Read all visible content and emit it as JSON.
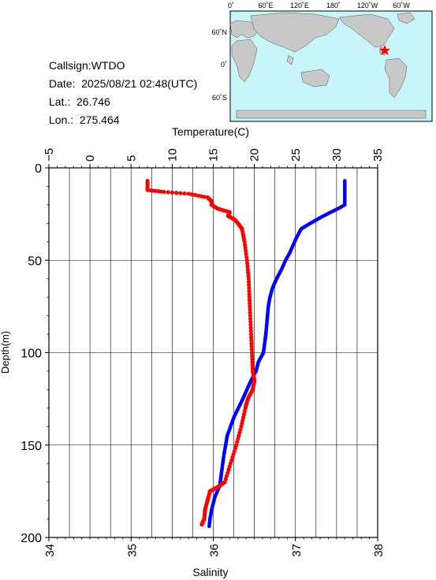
{
  "header": {
    "callsign": "Callsign:WTDO",
    "date": "Date:  2025/08/21 02:48(UTC)",
    "lat": "Lat.:  26.746",
    "lon": "Lon.:  275.464"
  },
  "map": {
    "top_labels": [
      "0˚",
      "60˚E",
      "120˚E",
      "180˚",
      "120˚W",
      "60˚W"
    ],
    "lat_labels": [
      "60˚N",
      "0˚",
      "60˚S"
    ],
    "station_marker": "red-star",
    "colors": {
      "ocean": "#c8f5fa",
      "land": "#c8c8c8",
      "marker": "#ff0000"
    }
  },
  "chart_data": {
    "type": "line",
    "title": "",
    "top_axis_label": "Temperature(C)",
    "bottom_axis_label": "Salinity",
    "y_axis_label": "Depth(m)",
    "temperature_range": [
      -5,
      35
    ],
    "salinity_range": [
      34,
      38
    ],
    "depth_range": [
      0,
      200
    ],
    "temperature_ticks": [
      "−5",
      "0",
      "5",
      "10",
      "15",
      "20",
      "25",
      "30",
      "35"
    ],
    "salinity_ticks": [
      "34",
      "35",
      "36",
      "37",
      "38"
    ],
    "depth_ticks": [
      "0",
      "50",
      "100",
      "150",
      "200"
    ],
    "grid": true,
    "series": [
      {
        "color": "#0000ff",
        "axis": "temperature",
        "depth": [
          7,
          20,
          22,
          24,
          27,
          30,
          33,
          38,
          42,
          46,
          50,
          55,
          60,
          65,
          70,
          75,
          80,
          90,
          100,
          105,
          110,
          115,
          125,
          135,
          145,
          155,
          165,
          172,
          178,
          185,
          190,
          194
        ],
        "temperature": [
          31.0,
          31.0,
          30.2,
          29.3,
          28.0,
          26.8,
          25.7,
          25.1,
          24.7,
          24.3,
          23.8,
          23.3,
          22.7,
          22.2,
          21.9,
          21.7,
          21.6,
          21.4,
          21.1,
          20.5,
          20.2,
          19.6,
          18.6,
          17.5,
          16.7,
          16.3,
          16.0,
          15.8,
          15.2,
          14.8,
          14.6,
          14.5
        ]
      },
      {
        "color": "#ff0000",
        "axis": "temperature",
        "depth": [
          7,
          12,
          13,
          14,
          16,
          18,
          20,
          22,
          24,
          26,
          28,
          30,
          33,
          40,
          50,
          60,
          70,
          80,
          90,
          100,
          110,
          115,
          120,
          125,
          130,
          140,
          150,
          160,
          170,
          172,
          175,
          180,
          185,
          190,
          193
        ],
        "temperature": [
          7.0,
          7.0,
          9.0,
          12.0,
          14.3,
          14.8,
          14.8,
          15.5,
          17.0,
          16.8,
          17.6,
          18.0,
          18.5,
          18.8,
          19.1,
          19.3,
          19.4,
          19.5,
          19.6,
          19.7,
          19.8,
          20.0,
          19.8,
          19.2,
          18.9,
          18.4,
          17.8,
          17.1,
          16.4,
          15.8,
          14.6,
          14.3,
          14.0,
          13.9,
          13.6
        ]
      }
    ]
  }
}
